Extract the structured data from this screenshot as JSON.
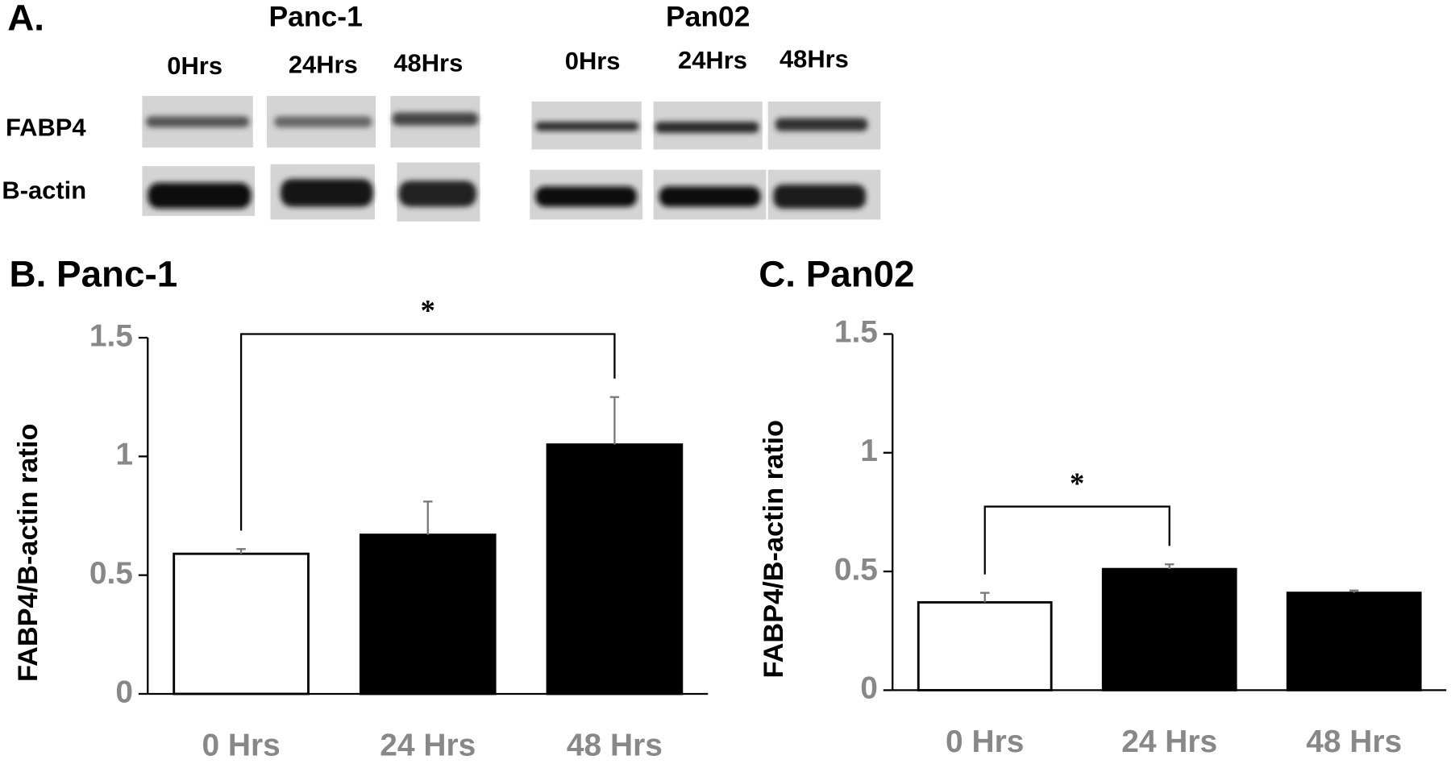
{
  "panel_a": {
    "label": "A.",
    "row_labels": [
      "FABP4",
      "B-actin"
    ],
    "groups": [
      {
        "name": "Panc-1",
        "lanes": [
          "0Hrs",
          "24Hrs",
          "48Hrs"
        ]
      },
      {
        "name": "Pan02",
        "lanes": [
          "0Hrs",
          "24Hrs",
          "48Hrs"
        ]
      }
    ]
  },
  "chart_data": [
    {
      "type": "bar",
      "title": "B. Panc-1",
      "y_label": "FABP4/B-actin ratio",
      "categories": [
        "0 Hrs",
        "24 Hrs",
        "48 Hrs"
      ],
      "values": [
        0.59,
        0.67,
        1.05
      ],
      "errors": [
        0.02,
        0.14,
        0.2
      ],
      "colors": [
        "#ffffff",
        "#000000",
        "#000000"
      ],
      "error_color": "#777777",
      "ylim": [
        0,
        1.5
      ],
      "yticks": [
        0,
        0.5,
        1,
        1.5
      ],
      "annotations": [
        {
          "label": "*",
          "from": 0,
          "to": 2
        }
      ]
    },
    {
      "type": "bar",
      "title": "C. Pan02",
      "y_label": "FABP4/B-actin ratio",
      "categories": [
        "0 Hrs",
        "24 Hrs",
        "48 Hrs"
      ],
      "values": [
        0.37,
        0.51,
        0.41
      ],
      "errors": [
        0.04,
        0.02,
        0.01
      ],
      "colors": [
        "#ffffff",
        "#000000",
        "#000000"
      ],
      "error_color": "#777777",
      "ylim": [
        0,
        1.5
      ],
      "yticks": [
        0,
        0.5,
        1,
        1.5
      ],
      "annotations": [
        {
          "label": "*",
          "from": 0,
          "to": 1
        }
      ]
    }
  ]
}
